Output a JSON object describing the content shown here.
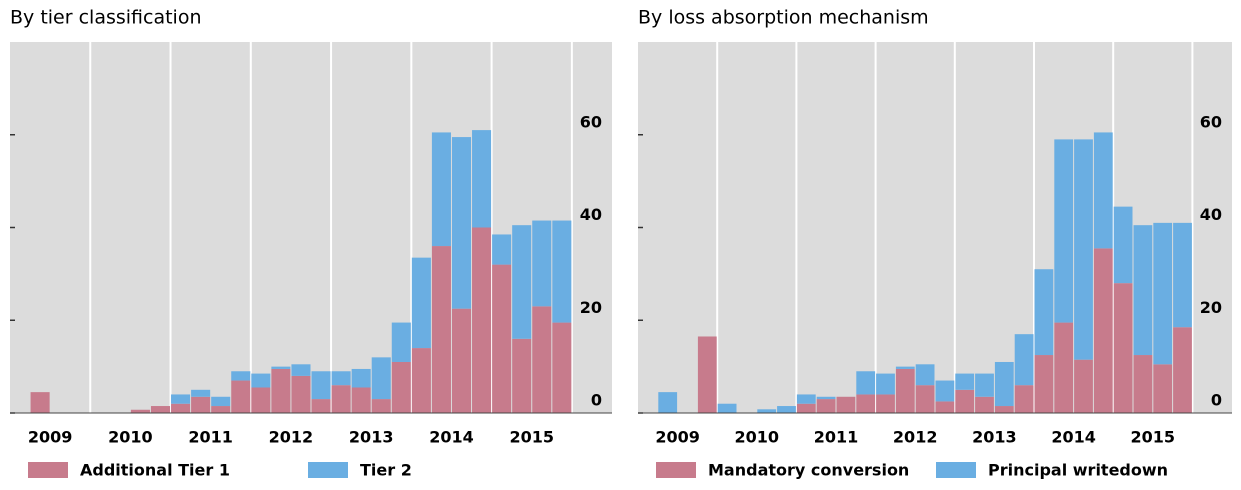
{
  "chart_data": [
    {
      "type": "bar",
      "stacked": true,
      "title": "By tier classification",
      "x": [
        2009,
        2009.25,
        2009.5,
        2009.75,
        2010,
        2010.25,
        2010.5,
        2010.75,
        2011,
        2011.25,
        2011.5,
        2011.75,
        2012,
        2012.25,
        2012.5,
        2012.75,
        2013,
        2013.25,
        2013.5,
        2013.75,
        2014,
        2014.25,
        2014.5,
        2014.75,
        2015,
        2015.25,
        2015.5,
        2015.75
      ],
      "series": [
        {
          "name": "Additional Tier 1",
          "color": "#c77b8c",
          "values": [
            0,
            4.5,
            0,
            0,
            0,
            0,
            0.7,
            1.5,
            2,
            3.5,
            1.5,
            7,
            5.5,
            9.5,
            8,
            3,
            6,
            5.5,
            3,
            11,
            14,
            36,
            22.5,
            40,
            32,
            16,
            23,
            19.5
          ]
        },
        {
          "name": "Tier 2",
          "color": "#6aaee2",
          "values": [
            0,
            0,
            0,
            0,
            0,
            0,
            0,
            0,
            2,
            1.5,
            2,
            2,
            3,
            0.5,
            2.5,
            6,
            3,
            4,
            9,
            8.5,
            19.5,
            24.5,
            37,
            21,
            6.5,
            24.5,
            18.5,
            22
          ]
        }
      ],
      "xlim": [
        2009,
        2016.5
      ],
      "xticks": [
        {
          "value": 2009.5,
          "label": "2009"
        },
        {
          "value": 2010.5,
          "label": "2010"
        },
        {
          "value": 2011.5,
          "label": "2011"
        },
        {
          "value": 2012.5,
          "label": "2012"
        },
        {
          "value": 2013.5,
          "label": "2013"
        },
        {
          "value": 2014.5,
          "label": "2014"
        },
        {
          "value": 2015.5,
          "label": "2015"
        }
      ],
      "ylim": [
        0,
        80
      ],
      "yticks": [
        0,
        20,
        40,
        60
      ],
      "grid": true,
      "legend": "bottom"
    },
    {
      "type": "bar",
      "stacked": true,
      "title": "By loss absorption mechanism",
      "x": [
        2009,
        2009.25,
        2009.5,
        2009.75,
        2010,
        2010.25,
        2010.5,
        2010.75,
        2011,
        2011.25,
        2011.5,
        2011.75,
        2012,
        2012.25,
        2012.5,
        2012.75,
        2013,
        2013.25,
        2013.5,
        2013.75,
        2014,
        2014.25,
        2014.5,
        2014.75,
        2015,
        2015.25,
        2015.5,
        2015.75
      ],
      "series": [
        {
          "name": "Mandatory conversion",
          "color": "#c77b8c",
          "values": [
            0,
            0,
            0,
            16.5,
            0,
            0,
            0,
            0,
            2,
            3,
            3.5,
            4,
            4,
            9.5,
            6,
            2.5,
            5,
            3.5,
            1.5,
            6,
            12.5,
            19.5,
            11.5,
            35.5,
            28,
            12.5,
            10.5,
            18.5
          ]
        },
        {
          "name": "Principal writedown",
          "color": "#6aaee2",
          "values": [
            0,
            4.5,
            0,
            0,
            2,
            0,
            0.8,
            1.5,
            2,
            0.5,
            0,
            5,
            4.5,
            0.5,
            4.5,
            4.5,
            3.5,
            5,
            9.5,
            11,
            18.5,
            39.5,
            47.5,
            25,
            16.5,
            28,
            30.5,
            22.5
          ]
        }
      ],
      "xlim": [
        2009,
        2016.5
      ],
      "xticks": [
        {
          "value": 2009.5,
          "label": "2009"
        },
        {
          "value": 2010.5,
          "label": "2010"
        },
        {
          "value": 2011.5,
          "label": "2011"
        },
        {
          "value": 2012.5,
          "label": "2012"
        },
        {
          "value": 2013.5,
          "label": "2013"
        },
        {
          "value": 2014.5,
          "label": "2014"
        },
        {
          "value": 2015.5,
          "label": "2015"
        }
      ],
      "ylim": [
        0,
        80
      ],
      "yticks": [
        0,
        20,
        40,
        60
      ],
      "grid": true,
      "legend": "bottom"
    }
  ]
}
